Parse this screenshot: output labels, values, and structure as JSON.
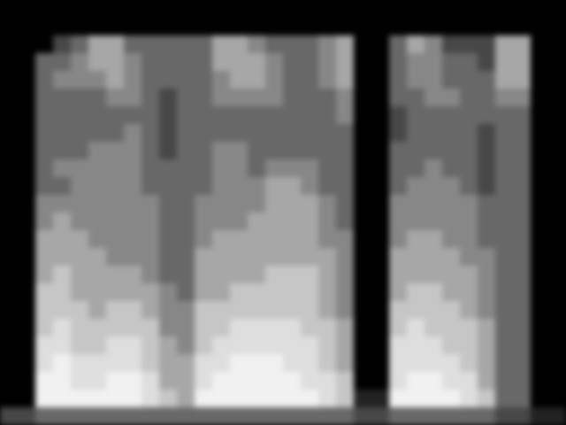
{
  "chart_data": {
    "type": "heatmap",
    "tick_labels": false,
    "color": "gray",
    "value_range": [
      0,
      9
    ],
    "cells": [
      [
        0,
        0,
        0,
        0,
        0,
        0,
        0,
        0,
        0,
        0,
        0,
        0,
        0,
        0,
        0,
        0,
        0,
        0,
        0,
        0,
        0,
        0,
        0,
        0,
        0,
        0,
        0,
        0,
        0,
        0,
        0,
        0
      ],
      [
        0,
        0,
        0,
        0,
        0,
        0,
        0,
        0,
        0,
        0,
        0,
        0,
        0,
        0,
        0,
        0,
        0,
        0,
        0,
        0,
        0,
        0,
        0,
        0,
        0,
        0,
        0,
        0,
        0,
        0,
        0,
        0
      ],
      [
        0,
        0,
        0,
        2,
        3,
        5,
        5,
        3,
        3,
        3,
        3,
        3,
        5,
        5,
        4,
        3,
        3,
        3,
        4,
        5,
        0,
        0,
        3,
        5,
        4,
        2,
        2,
        2,
        5,
        5,
        0,
        0
      ],
      [
        0,
        0,
        3,
        3,
        4,
        5,
        5,
        4,
        3,
        3,
        3,
        3,
        5,
        5,
        5,
        4,
        3,
        3,
        4,
        5,
        0,
        0,
        3,
        4,
        4,
        3,
        3,
        2,
        5,
        5,
        0,
        0
      ],
      [
        0,
        0,
        3,
        4,
        4,
        4,
        5,
        4,
        3,
        3,
        3,
        3,
        4,
        5,
        5,
        4,
        3,
        3,
        4,
        5,
        0,
        0,
        3,
        4,
        4,
        3,
        3,
        3,
        5,
        5,
        0,
        0
      ],
      [
        0,
        0,
        3,
        3,
        3,
        3,
        4,
        4,
        3,
        2,
        3,
        3,
        4,
        4,
        4,
        4,
        3,
        3,
        3,
        4,
        0,
        0,
        3,
        3,
        4,
        4,
        3,
        3,
        4,
        4,
        0,
        0
      ],
      [
        0,
        0,
        3,
        3,
        3,
        3,
        3,
        3,
        3,
        2,
        3,
        3,
        3,
        3,
        3,
        3,
        3,
        3,
        3,
        4,
        0,
        0,
        2,
        3,
        3,
        3,
        3,
        3,
        3,
        3,
        0,
        0
      ],
      [
        0,
        0,
        3,
        3,
        3,
        3,
        3,
        4,
        3,
        2,
        3,
        3,
        3,
        3,
        3,
        3,
        3,
        3,
        3,
        3,
        0,
        0,
        2,
        3,
        3,
        3,
        3,
        2,
        3,
        3,
        0,
        0
      ],
      [
        0,
        0,
        3,
        3,
        3,
        4,
        4,
        4,
        3,
        2,
        3,
        3,
        4,
        4,
        3,
        3,
        3,
        3,
        3,
        3,
        0,
        0,
        3,
        3,
        3,
        3,
        3,
        2,
        3,
        3,
        0,
        0
      ],
      [
        0,
        0,
        3,
        4,
        4,
        4,
        4,
        4,
        3,
        3,
        3,
        3,
        4,
        4,
        3,
        4,
        4,
        4,
        3,
        3,
        0,
        0,
        3,
        3,
        4,
        3,
        3,
        2,
        3,
        3,
        0,
        0
      ],
      [
        0,
        0,
        3,
        3,
        4,
        4,
        4,
        4,
        3,
        3,
        3,
        3,
        4,
        4,
        4,
        5,
        5,
        4,
        3,
        3,
        0,
        0,
        3,
        4,
        4,
        4,
        3,
        2,
        3,
        3,
        0,
        0
      ],
      [
        0,
        0,
        4,
        4,
        4,
        4,
        4,
        4,
        4,
        3,
        3,
        4,
        4,
        4,
        4,
        5,
        5,
        5,
        4,
        3,
        0,
        0,
        4,
        4,
        4,
        4,
        4,
        3,
        3,
        3,
        0,
        0
      ],
      [
        0,
        0,
        4,
        5,
        4,
        4,
        4,
        4,
        4,
        3,
        3,
        4,
        4,
        4,
        5,
        5,
        5,
        5,
        4,
        3,
        0,
        0,
        4,
        4,
        4,
        4,
        4,
        3,
        3,
        3,
        0,
        0
      ],
      [
        0,
        0,
        5,
        5,
        5,
        4,
        4,
        4,
        4,
        3,
        3,
        4,
        5,
        5,
        5,
        5,
        5,
        5,
        4,
        4,
        0,
        0,
        4,
        5,
        5,
        4,
        4,
        3,
        3,
        3,
        0,
        0
      ],
      [
        0,
        0,
        5,
        5,
        5,
        5,
        4,
        4,
        4,
        3,
        3,
        5,
        5,
        5,
        5,
        5,
        5,
        5,
        5,
        4,
        0,
        0,
        5,
        5,
        5,
        5,
        4,
        4,
        3,
        3,
        0,
        0
      ],
      [
        0,
        0,
        5,
        6,
        5,
        5,
        5,
        5,
        4,
        3,
        3,
        5,
        5,
        5,
        5,
        6,
        6,
        6,
        5,
        4,
        0,
        0,
        5,
        5,
        5,
        5,
        5,
        4,
        3,
        3,
        0,
        0
      ],
      [
        0,
        0,
        6,
        6,
        5,
        5,
        5,
        5,
        5,
        4,
        3,
        5,
        5,
        6,
        6,
        6,
        6,
        6,
        5,
        4,
        0,
        0,
        5,
        6,
        6,
        5,
        5,
        4,
        3,
        3,
        0,
        0
      ],
      [
        0,
        0,
        6,
        6,
        6,
        5,
        6,
        6,
        5,
        4,
        4,
        6,
        6,
        6,
        6,
        6,
        6,
        6,
        5,
        4,
        0,
        0,
        6,
        6,
        6,
        6,
        5,
        4,
        3,
        3,
        0,
        0
      ],
      [
        0,
        0,
        6,
        7,
        6,
        6,
        6,
        6,
        6,
        4,
        4,
        6,
        6,
        7,
        7,
        7,
        7,
        6,
        6,
        5,
        0,
        0,
        6,
        7,
        6,
        6,
        6,
        5,
        3,
        3,
        0,
        0
      ],
      [
        0,
        0,
        7,
        7,
        6,
        6,
        7,
        7,
        6,
        5,
        4,
        6,
        7,
        7,
        7,
        7,
        7,
        7,
        6,
        5,
        0,
        0,
        7,
        7,
        7,
        6,
        6,
        5,
        3,
        3,
        0,
        0
      ],
      [
        0,
        0,
        7,
        8,
        7,
        7,
        7,
        7,
        6,
        5,
        5,
        7,
        7,
        8,
        8,
        8,
        7,
        7,
        6,
        5,
        0,
        0,
        7,
        7,
        7,
        7,
        6,
        5,
        3,
        3,
        0,
        0
      ],
      [
        0,
        0,
        8,
        8,
        7,
        7,
        8,
        8,
        7,
        5,
        5,
        7,
        8,
        8,
        8,
        8,
        8,
        7,
        7,
        6,
        0,
        0,
        7,
        8,
        8,
        7,
        7,
        5,
        3,
        3,
        0,
        0
      ],
      [
        0,
        0,
        8,
        8,
        8,
        8,
        8,
        8,
        7,
        6,
        5,
        8,
        8,
        8,
        8,
        8,
        8,
        8,
        7,
        6,
        1,
        1,
        8,
        8,
        8,
        8,
        7,
        6,
        3,
        3,
        0,
        0
      ],
      [
        2,
        2,
        3,
        3,
        3,
        3,
        3,
        3,
        3,
        3,
        3,
        3,
        3,
        3,
        3,
        3,
        3,
        3,
        3,
        3,
        2,
        2,
        3,
        3,
        3,
        3,
        3,
        3,
        2,
        2,
        1,
        1
      ]
    ]
  }
}
